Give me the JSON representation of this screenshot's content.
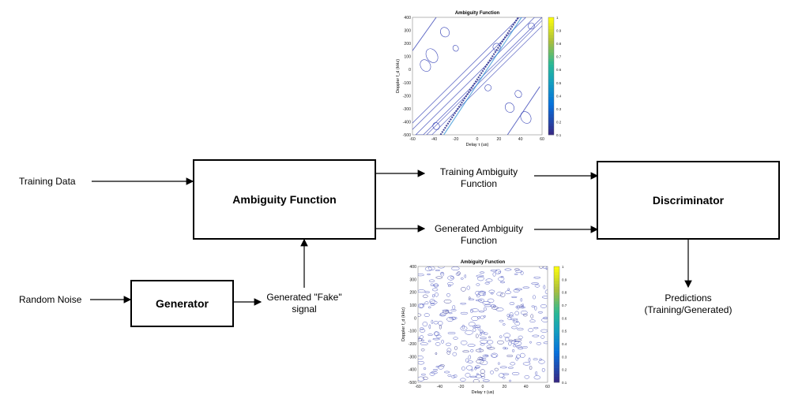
{
  "nodes": {
    "ambiguity": "Ambiguity Function",
    "discriminator": "Discriminator",
    "generator": "Generator"
  },
  "labels": {
    "training_data": "Training Data",
    "random_noise": "Random Noise",
    "training_af_1": "Training Ambiguity",
    "training_af_2": "Function",
    "generated_af_1": "Generated Ambiguity",
    "generated_af_2": "Function",
    "fake_1": "Generated \"Fake\"",
    "fake_2": "signal",
    "pred_1": "Predictions",
    "pred_2": "(Training/Generated)"
  },
  "plots": {
    "top": {
      "title": "Ambiguity Function",
      "xlabel": "Delay τ (us)",
      "ylabel": "Doppler f_d (kHz)",
      "xticks": [
        "-60",
        "-40",
        "-20",
        "0",
        "20",
        "40",
        "60"
      ],
      "yticks": [
        "400",
        "300",
        "200",
        "100",
        "0",
        "-100",
        "-200",
        "-300",
        "-400",
        "-500"
      ],
      "cticks": [
        "1",
        "0.9",
        "0.8",
        "0.7",
        "0.6",
        "0.5",
        "0.4",
        "0.3",
        "0.2",
        "0.1"
      ]
    },
    "bottom": {
      "title": "Ambiguity Function",
      "xlabel": "Delay τ (us)",
      "ylabel": "Doppler f_d (kHz)",
      "xticks": [
        "-60",
        "-40",
        "-20",
        "0",
        "20",
        "40",
        "60"
      ],
      "yticks": [
        "400",
        "300",
        "200",
        "100",
        "0",
        "-100",
        "-200",
        "-300",
        "-400",
        "-500"
      ],
      "cticks": [
        "1",
        "0.9",
        "0.8",
        "0.7",
        "0.6",
        "0.5",
        "0.4",
        "0.3",
        "0.2",
        "0.1"
      ]
    }
  },
  "colors": {
    "contour_blue": "#3b47b8",
    "contour_dark": "#2b2f8c",
    "line": "#000000"
  }
}
